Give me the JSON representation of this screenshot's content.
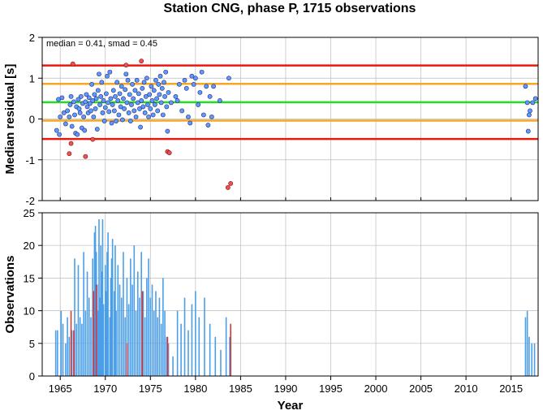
{
  "title": "Station CNG, phase P, 1715 observations",
  "chart_data": [
    {
      "type": "scatter",
      "ylabel": "Median residual [s]",
      "xlim": [
        1963,
        2018
      ],
      "ylim": [
        -2,
        2
      ],
      "yticks": [
        -2,
        -1,
        0,
        1,
        2
      ],
      "grid": true,
      "annotation": "median = 0.41, smad = 0.45",
      "hlines": [
        {
          "y": 1.31,
          "color": "#e8190f"
        },
        {
          "y": 0.86,
          "color": "#f5a623"
        },
        {
          "y": 0.41,
          "color": "#22dd22"
        },
        {
          "y": -0.04,
          "color": "#f5a623"
        },
        {
          "y": -0.49,
          "color": "#e8190f"
        }
      ],
      "colors": {
        "inlier": "#5b9bff",
        "outlier": "#f05050",
        "edge": "#2a2a70"
      },
      "points": [
        [
          1964.6,
          -0.28
        ],
        [
          1964.8,
          0.48
        ],
        [
          1964.9,
          -0.38
        ],
        [
          1965.0,
          0.05
        ],
        [
          1965.2,
          0.52
        ],
        [
          1965.4,
          0.15
        ],
        [
          1965.6,
          -0.12
        ],
        [
          1965.8,
          0.2
        ],
        [
          1966.0,
          0.05
        ],
        [
          1966.1,
          0.35
        ],
        [
          1966.2,
          0.55
        ],
        [
          1966.3,
          -0.18
        ],
        [
          1966.5,
          0.42
        ],
        [
          1966.6,
          0.1
        ],
        [
          1966.7,
          -0.35
        ],
        [
          1966.8,
          0.3
        ],
        [
          1966.9,
          -0.38
        ],
        [
          1967.0,
          0.48
        ],
        [
          1967.1,
          0.25
        ],
        [
          1967.2,
          0.15
        ],
        [
          1967.3,
          0.55
        ],
        [
          1967.4,
          -0.22
        ],
        [
          1967.5,
          0.38
        ],
        [
          1967.6,
          0.05
        ],
        [
          1967.7,
          -0.28
        ],
        [
          1967.8,
          0.42
        ],
        [
          1967.9,
          0.6
        ],
        [
          1968.0,
          0.3
        ],
        [
          1968.1,
          0.15
        ],
        [
          1968.2,
          0.52
        ],
        [
          1968.3,
          0.38
        ],
        [
          1968.4,
          0.2
        ],
        [
          1968.5,
          0.85
        ],
        [
          1968.6,
          0.45
        ],
        [
          1968.7,
          0.05
        ],
        [
          1968.8,
          0.6
        ],
        [
          1968.9,
          0.25
        ],
        [
          1969.0,
          0.5
        ],
        [
          1969.1,
          -0.25
        ],
        [
          1969.2,
          0.7
        ],
        [
          1969.3,
          1.1
        ],
        [
          1969.4,
          0.35
        ],
        [
          1969.5,
          0.55
        ],
        [
          1969.6,
          0.9
        ],
        [
          1969.7,
          0.15
        ],
        [
          1969.8,
          0.45
        ],
        [
          1969.9,
          -0.05
        ],
        [
          1970.0,
          0.28
        ],
        [
          1970.1,
          0.62
        ],
        [
          1970.2,
          1.05
        ],
        [
          1970.3,
          0.4
        ],
        [
          1970.4,
          0.18
        ],
        [
          1970.5,
          1.15
        ],
        [
          1970.6,
          0.5
        ],
        [
          1970.7,
          -0.1
        ],
        [
          1970.8,
          0.35
        ],
        [
          1970.9,
          0.7
        ],
        [
          1971.0,
          0.2
        ],
        [
          1971.1,
          0.55
        ],
        [
          1971.2,
          -0.05
        ],
        [
          1971.3,
          0.9
        ],
        [
          1971.4,
          0.45
        ],
        [
          1971.5,
          0.1
        ],
        [
          1971.6,
          0.62
        ],
        [
          1971.7,
          0.3
        ],
        [
          1971.8,
          0.8
        ],
        [
          1971.9,
          -0.02
        ],
        [
          1972.0,
          0.5
        ],
        [
          1972.1,
          0.25
        ],
        [
          1972.2,
          0.72
        ],
        [
          1972.3,
          1.1
        ],
        [
          1972.4,
          0.4
        ],
        [
          1972.5,
          0.95
        ],
        [
          1972.6,
          0.15
        ],
        [
          1972.7,
          0.6
        ],
        [
          1972.8,
          -0.05
        ],
        [
          1972.9,
          0.35
        ],
        [
          1973.0,
          0.85
        ],
        [
          1973.1,
          0.5
        ],
        [
          1973.2,
          0.2
        ],
        [
          1973.3,
          0.7
        ],
        [
          1973.4,
          0.05
        ],
        [
          1973.5,
          0.95
        ],
        [
          1973.6,
          0.4
        ],
        [
          1973.7,
          0.62
        ],
        [
          1973.8,
          0.25
        ],
        [
          1973.9,
          -0.2
        ],
        [
          1974.0,
          0.45
        ],
        [
          1974.1,
          0.75
        ],
        [
          1974.2,
          0.3
        ],
        [
          1974.3,
          0.9
        ],
        [
          1974.4,
          0.15
        ],
        [
          1974.5,
          0.55
        ],
        [
          1974.6,
          1.0
        ],
        [
          1974.7,
          0.35
        ],
        [
          1974.8,
          0.05
        ],
        [
          1974.9,
          0.6
        ],
        [
          1975.0,
          0.25
        ],
        [
          1975.1,
          0.8
        ],
        [
          1975.2,
          0.45
        ],
        [
          1975.3,
          0.1
        ],
        [
          1975.4,
          0.7
        ],
        [
          1975.5,
          0.35
        ],
        [
          1975.6,
          0.95
        ],
        [
          1975.7,
          0.5
        ],
        [
          1975.8,
          0.2
        ],
        [
          1975.9,
          0.85
        ],
        [
          1976.0,
          0.6
        ],
        [
          1976.1,
          1.05
        ],
        [
          1976.2,
          0.4
        ],
        [
          1976.3,
          0.75
        ],
        [
          1976.4,
          0.1
        ],
        [
          1976.5,
          0.9
        ],
        [
          1976.6,
          0.55
        ],
        [
          1976.7,
          1.15
        ],
        [
          1976.8,
          0.3
        ],
        [
          1976.9,
          -0.3
        ],
        [
          1977.0,
          0.65
        ],
        [
          1977.3,
          0.4
        ],
        [
          1977.8,
          0.55
        ],
        [
          1978.0,
          0.45
        ],
        [
          1978.2,
          0.85
        ],
        [
          1978.5,
          0.2
        ],
        [
          1978.8,
          0.95
        ],
        [
          1979.0,
          0.75
        ],
        [
          1979.2,
          0.05
        ],
        [
          1979.4,
          -0.1
        ],
        [
          1979.6,
          1.05
        ],
        [
          1979.8,
          0.85
        ],
        [
          1980.0,
          1.0
        ],
        [
          1980.3,
          0.35
        ],
        [
          1980.5,
          0.65
        ],
        [
          1980.7,
          1.15
        ],
        [
          1980.9,
          0.1
        ],
        [
          1981.2,
          0.8
        ],
        [
          1981.4,
          -0.15
        ],
        [
          1981.6,
          0.55
        ],
        [
          1981.8,
          0.05
        ],
        [
          1982.0,
          0.8
        ],
        [
          1982.7,
          0.45
        ],
        [
          1983.7,
          1.0
        ],
        [
          2016.6,
          0.8
        ],
        [
          2016.8,
          0.4
        ],
        [
          2016.9,
          -0.3
        ],
        [
          2017.0,
          0.1
        ],
        [
          2017.1,
          0.2
        ],
        [
          2017.4,
          0.4
        ],
        [
          2017.7,
          0.5
        ]
      ],
      "outliers": [
        [
          1966.0,
          -0.85
        ],
        [
          1966.2,
          -0.6
        ],
        [
          1966.4,
          1.35
        ],
        [
          1967.8,
          -0.92
        ],
        [
          1968.6,
          -0.5
        ],
        [
          1972.3,
          1.32
        ],
        [
          1974.0,
          1.42
        ],
        [
          1976.9,
          -0.8
        ],
        [
          1977.1,
          -0.83
        ],
        [
          1983.6,
          -1.68
        ],
        [
          1983.9,
          -1.58
        ]
      ]
    },
    {
      "type": "bar",
      "xlabel": "Year",
      "ylabel": "Observations",
      "xlim": [
        1963,
        2018
      ],
      "ylim": [
        0,
        25
      ],
      "yticks": [
        0,
        5,
        10,
        15,
        20,
        25
      ],
      "xticks": [
        1965,
        1970,
        1975,
        1980,
        1985,
        1990,
        1995,
        2000,
        2005,
        2010,
        2015
      ],
      "grid": true,
      "colors": {
        "inlier": "#4b9fe8",
        "outlier": "#d9373a"
      },
      "series": [
        {
          "values": [
            [
              1964.5,
              7
            ],
            [
              1964.7,
              7
            ],
            [
              1965.1,
              10
            ],
            [
              1965.3,
              8
            ],
            [
              1965.6,
              5
            ],
            [
              1965.8,
              9
            ],
            [
              1966.0,
              6
            ],
            [
              1966.3,
              7
            ],
            [
              1966.6,
              18
            ],
            [
              1966.8,
              8
            ],
            [
              1967.0,
              17
            ],
            [
              1967.2,
              9
            ],
            [
              1967.4,
              8
            ],
            [
              1967.6,
              19
            ],
            [
              1967.8,
              10
            ],
            [
              1968.0,
              16
            ],
            [
              1968.2,
              12
            ],
            [
              1968.4,
              9
            ],
            [
              1968.6,
              18
            ],
            [
              1968.8,
              22
            ],
            [
              1968.9,
              23
            ],
            [
              1969.0,
              19
            ],
            [
              1969.1,
              14
            ],
            [
              1969.2,
              10
            ],
            [
              1969.3,
              24
            ],
            [
              1969.4,
              12
            ],
            [
              1969.5,
              20
            ],
            [
              1969.6,
              16
            ],
            [
              1969.7,
              24
            ],
            [
              1969.8,
              11
            ],
            [
              1970.0,
              17
            ],
            [
              1970.1,
              13
            ],
            [
              1970.2,
              19
            ],
            [
              1970.3,
              22
            ],
            [
              1970.5,
              9
            ],
            [
              1970.6,
              15
            ],
            [
              1970.7,
              18
            ],
            [
              1970.8,
              21
            ],
            [
              1971.0,
              13
            ],
            [
              1971.1,
              20
            ],
            [
              1971.2,
              10
            ],
            [
              1971.4,
              17
            ],
            [
              1971.6,
              14
            ],
            [
              1971.8,
              12
            ],
            [
              1972.0,
              19
            ],
            [
              1972.2,
              9
            ],
            [
              1972.4,
              15
            ],
            [
              1972.6,
              11
            ],
            [
              1972.8,
              18
            ],
            [
              1973.0,
              14
            ],
            [
              1973.2,
              20
            ],
            [
              1973.4,
              10
            ],
            [
              1973.6,
              16
            ],
            [
              1973.8,
              12
            ],
            [
              1974.0,
              19
            ],
            [
              1974.2,
              13
            ],
            [
              1974.4,
              9
            ],
            [
              1974.6,
              15
            ],
            [
              1974.8,
              18
            ],
            [
              1975.0,
              12
            ],
            [
              1975.2,
              14
            ],
            [
              1975.4,
              10
            ],
            [
              1975.6,
              13
            ],
            [
              1975.8,
              9
            ],
            [
              1976.0,
              12
            ],
            [
              1976.2,
              8
            ],
            [
              1976.4,
              15
            ],
            [
              1976.6,
              10
            ],
            [
              1976.8,
              6
            ],
            [
              1977.0,
              5
            ],
            [
              1977.5,
              3
            ],
            [
              1978.0,
              10
            ],
            [
              1978.4,
              8
            ],
            [
              1978.8,
              12
            ],
            [
              1979.2,
              7
            ],
            [
              1979.6,
              11
            ],
            [
              1980.0,
              13
            ],
            [
              1980.4,
              9
            ],
            [
              1981.0,
              12
            ],
            [
              1981.6,
              8
            ],
            [
              1982.2,
              6
            ],
            [
              1982.8,
              4
            ],
            [
              1983.4,
              9
            ],
            [
              1983.8,
              6
            ],
            [
              2016.6,
              9
            ],
            [
              2016.8,
              10
            ],
            [
              2017.0,
              6
            ],
            [
              2017.3,
              5
            ],
            [
              2017.6,
              5
            ]
          ]
        },
        {
          "values": [
            [
              1966.2,
              10
            ],
            [
              1966.5,
              7
            ],
            [
              1968.7,
              13
            ],
            [
              1969.0,
              14
            ],
            [
              1972.4,
              5
            ],
            [
              1974.1,
              13
            ],
            [
              1976.9,
              6
            ],
            [
              1983.9,
              8
            ]
          ]
        }
      ]
    }
  ]
}
